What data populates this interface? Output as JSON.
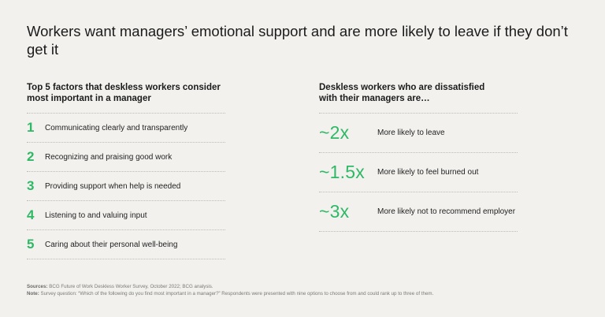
{
  "title": "Workers want managers’ emotional support and are more likely to leave if they don’t get it",
  "left": {
    "heading_line1": "Top 5 factors that deskless workers consider",
    "heading_line2": "most  important in a manager",
    "items": [
      {
        "num": "1",
        "text": "Communicating clearly and transparently"
      },
      {
        "num": "2",
        "text": "Recognizing and praising good work"
      },
      {
        "num": "3",
        "text": "Providing support when help is needed"
      },
      {
        "num": "4",
        "text": "Listening to and valuing input"
      },
      {
        "num": "5",
        "text": "Caring about their personal well-being"
      }
    ]
  },
  "right": {
    "heading_line1": "Deskless workers who are dissatisfied",
    "heading_line2": "with their managers are…",
    "items": [
      {
        "value": "~2x",
        "text": "More likely to leave"
      },
      {
        "value": "~1.5x",
        "text": "More likely to feel burned out"
      },
      {
        "value": "~3x",
        "text": "More likely not to recommend employer"
      }
    ]
  },
  "footer": {
    "sources_label": "Sources:",
    "sources_text": "BCG Future of Work Deskless Worker Survey, October 2022; BCG analysis.",
    "note_label": "Note:",
    "note_text": "Survey question: “Which of the following do you find most important in a manager?” Respondents were presented with nine options to choose from and could rank up to three of them."
  },
  "colors": {
    "accent": "#2fb866",
    "background": "#f2f1ee"
  }
}
